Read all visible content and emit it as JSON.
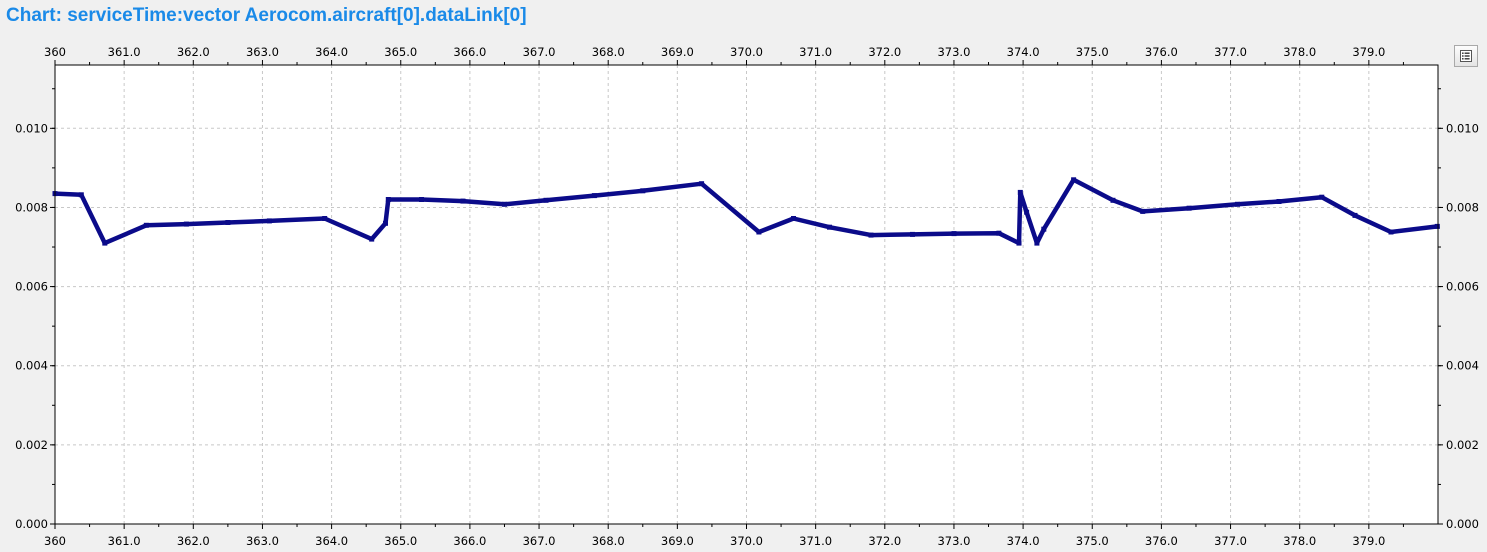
{
  "window": {
    "title": "Chart: serviceTime:vector Aerocom.aircraft[0].dataLink[0]"
  },
  "toolbar": {
    "legend_icon": "legend-list-icon"
  },
  "colors": {
    "title": "#1a8ae8",
    "series": "#0b0b8a",
    "grid": "#c8c8c8",
    "plot_background": "#ffffff",
    "window_background": "#f0f0f0"
  },
  "chart_data": {
    "type": "line",
    "title": "",
    "xlabel": "",
    "ylabel": "",
    "xlim": [
      360.0,
      380.0
    ],
    "ylim": [
      0.0,
      0.0116
    ],
    "grid": true,
    "legend": "none",
    "x_tick_labels": [
      "360",
      "361.0",
      "362.0",
      "363.0",
      "364.0",
      "365.0",
      "366.0",
      "367.0",
      "368.0",
      "369.0",
      "370.0",
      "371.0",
      "372.0",
      "373.0",
      "374.0",
      "375.0",
      "376.0",
      "377.0",
      "378.0",
      "379.0"
    ],
    "y_tick_labels": [
      "0.000",
      "0.002",
      "0.004",
      "0.006",
      "0.008",
      "0.010"
    ],
    "series": [
      {
        "x": [
          360.0,
          360.38,
          360.72,
          361.32,
          361.9,
          362.5,
          363.1,
          363.9,
          364.58,
          364.78,
          364.82,
          365.3,
          365.9,
          366.5,
          367.1,
          367.8,
          368.5,
          369.35,
          370.18,
          370.68,
          371.2,
          371.8,
          372.4,
          373.0,
          373.65,
          373.94,
          373.96,
          374.05,
          374.2,
          374.3,
          374.73,
          375.3,
          375.73,
          376.4,
          377.1,
          377.7,
          378.32,
          378.8,
          379.32,
          379.99
        ],
        "y": [
          0.00835,
          0.00832,
          0.0071,
          0.00755,
          0.00758,
          0.00762,
          0.00766,
          0.00772,
          0.0072,
          0.0076,
          0.0082,
          0.0082,
          0.00816,
          0.00808,
          0.00818,
          0.0083,
          0.00842,
          0.0086,
          0.00738,
          0.00772,
          0.0075,
          0.0073,
          0.00732,
          0.00734,
          0.00735,
          0.0071,
          0.00838,
          0.00788,
          0.0071,
          0.00745,
          0.0087,
          0.00818,
          0.0079,
          0.00798,
          0.00808,
          0.00815,
          0.00826,
          0.0078,
          0.00738,
          0.00752
        ]
      }
    ]
  }
}
